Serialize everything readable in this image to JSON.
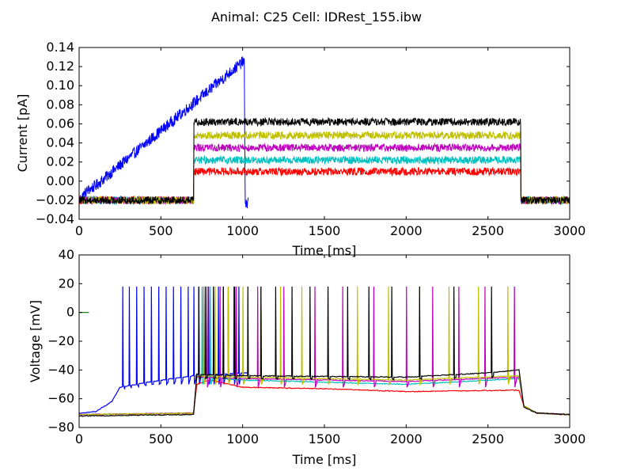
{
  "figure": {
    "suptitle": "Animal: C25 Cell: IDRest_155.ibw"
  },
  "chart_data": [
    {
      "type": "line",
      "xlabel": "Time [ms]",
      "ylabel": "Current [pA]",
      "xlim": [
        0,
        3000
      ],
      "ylim": [
        -0.04,
        0.14
      ],
      "xticks": [
        "0",
        "500",
        "1000",
        "1500",
        "2000",
        "2500",
        "3000"
      ],
      "yticks": [
        "-0.04",
        "-0.02",
        "0.00",
        "0.02",
        "0.04",
        "0.06",
        "0.08",
        "0.10",
        "0.12",
        "0.14"
      ],
      "grid": false,
      "series": [
        {
          "color": "#0000ff",
          "points": [
            [
              0,
              -0.02
            ],
            [
              50,
              -0.01
            ],
            [
              100,
              -0.005
            ],
            [
              1000,
              0.125
            ],
            [
              1010,
              0.125
            ],
            [
              1015,
              -0.02
            ],
            [
              1030,
              -0.025
            ],
            [
              1035,
              -0.02
            ]
          ]
        },
        {
          "color": "#ff0000",
          "points": [
            [
              0,
              -0.02
            ],
            [
              700,
              -0.02
            ],
            [
              700,
              0.01
            ],
            [
              2700,
              0.01
            ],
            [
              2700,
              -0.02
            ],
            [
              3000,
              -0.02
            ]
          ]
        },
        {
          "color": "#00bfbf",
          "points": [
            [
              0,
              -0.02
            ],
            [
              700,
              -0.02
            ],
            [
              700,
              0.022
            ],
            [
              2700,
              0.022
            ],
            [
              2700,
              -0.02
            ],
            [
              3000,
              -0.02
            ]
          ]
        },
        {
          "color": "#bf00bf",
          "points": [
            [
              0,
              -0.02
            ],
            [
              700,
              -0.02
            ],
            [
              700,
              0.035
            ],
            [
              2700,
              0.035
            ],
            [
              2700,
              -0.02
            ],
            [
              3000,
              -0.02
            ]
          ]
        },
        {
          "color": "#bfbf00",
          "points": [
            [
              0,
              -0.02
            ],
            [
              700,
              -0.02
            ],
            [
              700,
              0.048
            ],
            [
              2700,
              0.048
            ],
            [
              2700,
              -0.02
            ],
            [
              3000,
              -0.02
            ]
          ]
        },
        {
          "color": "#000000",
          "points": [
            [
              0,
              -0.02
            ],
            [
              700,
              -0.02
            ],
            [
              700,
              0.062
            ],
            [
              2700,
              0.062
            ],
            [
              2700,
              -0.02
            ],
            [
              3000,
              -0.02
            ]
          ]
        }
      ]
    },
    {
      "type": "line",
      "xlabel": "Time [ms]",
      "ylabel": "Voltage [mV]",
      "xlim": [
        0,
        3000
      ],
      "ylim": [
        -80,
        40
      ],
      "xticks": [
        "0",
        "500",
        "1000",
        "1500",
        "2000",
        "2500",
        "3000"
      ],
      "yticks": [
        "-80",
        "-60",
        "-40",
        "-20",
        "0",
        "20",
        "40"
      ],
      "grid": false,
      "series": [
        {
          "color": "#008000",
          "points": [
            [
              0,
              0
            ],
            [
              60,
              0
            ]
          ]
        },
        {
          "color": "#0000ff",
          "baseline": [
            [
              0,
              -70
            ],
            [
              100,
              -69
            ],
            [
              200,
              -62
            ],
            [
              250,
              -52
            ],
            [
              450,
              -48
            ],
            [
              700,
              -44
            ],
            [
              1030,
              -42
            ]
          ],
          "spikes": [
            265,
            305,
            350,
            395,
            440,
            485,
            530,
            575,
            620,
            665,
            700,
            730,
            760,
            790,
            820,
            850,
            880,
            910,
            945,
            975
          ],
          "peak": 18,
          "trough": -50
        },
        {
          "color": "#ff0000",
          "baseline": [
            [
              0,
              -71
            ],
            [
              700,
              -70
            ],
            [
              720,
              -50
            ],
            [
              800,
              -47
            ],
            [
              1000,
              -52
            ],
            [
              1500,
              -53
            ],
            [
              2000,
              -55
            ],
            [
              2690,
              -54
            ],
            [
              2720,
              -65
            ],
            [
              2800,
              -70
            ],
            [
              3000,
              -71
            ]
          ],
          "spikes": [],
          "peak": 0,
          "trough": 0
        },
        {
          "color": "#00bfbf",
          "baseline": [
            [
              0,
              -71
            ],
            [
              700,
              -70
            ],
            [
              720,
              -45
            ],
            [
              1000,
              -47
            ],
            [
              2000,
              -50
            ],
            [
              2690,
              -46
            ],
            [
              2720,
              -65
            ],
            [
              2800,
              -70
            ],
            [
              3000,
              -71
            ]
          ],
          "spikes": [
            750,
            800,
            2660
          ],
          "peak": 18,
          "trough": -50
        },
        {
          "color": "#bf00bf",
          "baseline": [
            [
              0,
              -71
            ],
            [
              700,
              -70
            ],
            [
              720,
              -45
            ],
            [
              1000,
              -46
            ],
            [
              2000,
              -48
            ],
            [
              2690,
              -45
            ],
            [
              2720,
              -65
            ],
            [
              2800,
              -70
            ],
            [
              3000,
              -71
            ]
          ],
          "spikes": [
            780,
            860,
            960,
            1090,
            1250,
            1440,
            1610,
            1800,
            2000,
            2160,
            2320,
            2480,
            2660
          ],
          "peak": 18,
          "trough": -52
        },
        {
          "color": "#bfbf00",
          "baseline": [
            [
              0,
              -71
            ],
            [
              700,
              -70
            ],
            [
              720,
              -44
            ],
            [
              1000,
              -45
            ],
            [
              2000,
              -47
            ],
            [
              2690,
              -44
            ],
            [
              2720,
              -65
            ],
            [
              2800,
              -70
            ],
            [
              3000,
              -71
            ]
          ],
          "spikes": [
            760,
            830,
            910,
            1000,
            1110,
            1230,
            1360,
            1520,
            1700,
            1890,
            2080,
            2260,
            2440,
            2620
          ],
          "peak": 18,
          "trough": -50
        },
        {
          "color": "#000000",
          "baseline": [
            [
              0,
              -72
            ],
            [
              700,
              -71
            ],
            [
              720,
              -43
            ],
            [
              1000,
              -44
            ],
            [
              2000,
              -45
            ],
            [
              2500,
              -42
            ],
            [
              2690,
              -40
            ],
            [
              2720,
              -66
            ],
            [
              2800,
              -70
            ],
            [
              3000,
              -71
            ]
          ],
          "spikes": [
            730,
            770,
            820,
            880,
            950,
            1030,
            1110,
            1200,
            1300,
            1410,
            1520,
            1640,
            1770,
            1910,
            2080,
            2290,
            2520
          ],
          "peak": 18,
          "trough": -46
        }
      ]
    }
  ]
}
